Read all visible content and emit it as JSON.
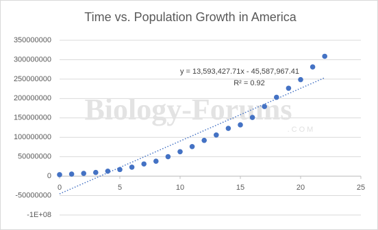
{
  "chart_data": {
    "type": "scatter",
    "title": "Time vs. Population Growth in America",
    "x": [
      0,
      1,
      2,
      3,
      4,
      5,
      6,
      7,
      8,
      9,
      10,
      11,
      12,
      13,
      14,
      15,
      16,
      17,
      18,
      19,
      20,
      21,
      22
    ],
    "series": [
      {
        "color": "#4472c4",
        "values": [
          3900000,
          5300000,
          7200000,
          9600000,
          12900000,
          17100000,
          23200000,
          31400000,
          38600000,
          50200000,
          63000000,
          76200000,
          92200000,
          106000000,
          123200000,
          132200000,
          151300000,
          179300000,
          203200000,
          226500000,
          248700000,
          281400000,
          308700000
        ]
      }
    ],
    "xlim": [
      0,
      25
    ],
    "xticks": [
      0,
      5,
      10,
      15,
      20,
      25
    ],
    "ylim": [
      -100000000,
      350000000
    ],
    "yticks": [
      {
        "value": -100000000,
        "label": "-1E+08"
      },
      -50000000,
      0,
      50000000,
      100000000,
      150000000,
      200000000,
      250000000,
      300000000,
      350000000
    ],
    "grid": true,
    "trendline": {
      "slope": 13593427.71,
      "intercept": -45587967.41,
      "equation": "y = 13,593,427.71x - 45,587,967.41",
      "r2": "R² = 0.92",
      "style": "dotted"
    },
    "watermark": "Biology-Forums",
    "watermark_sub": ".COM"
  }
}
